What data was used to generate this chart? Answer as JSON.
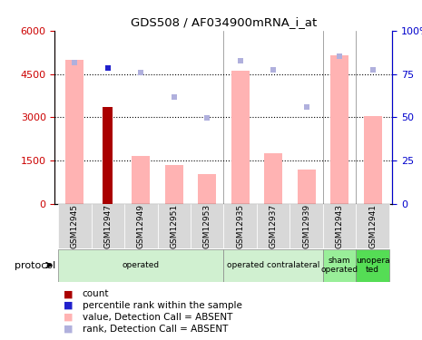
{
  "title": "GDS508 / AF034900mRNA_i_at",
  "samples": [
    "GSM12945",
    "GSM12947",
    "GSM12949",
    "GSM12951",
    "GSM12953",
    "GSM12935",
    "GSM12937",
    "GSM12939",
    "GSM12943",
    "GSM12941"
  ],
  "count_values": [
    null,
    3350,
    null,
    null,
    null,
    null,
    null,
    null,
    null,
    null
  ],
  "percentile_values": [
    null,
    4700,
    null,
    null,
    null,
    null,
    null,
    null,
    null,
    null
  ],
  "bar_values": [
    5000,
    null,
    1650,
    1350,
    1050,
    4600,
    1750,
    1200,
    5150,
    3050
  ],
  "rank_values": [
    4900,
    null,
    4550,
    3700,
    2980,
    4950,
    4650,
    3350,
    5100,
    4650
  ],
  "ylim_left": [
    0,
    6000
  ],
  "ylim_right": [
    0,
    100
  ],
  "yticks_left": [
    0,
    1500,
    3000,
    4500,
    6000
  ],
  "ytick_labels_left": [
    "0",
    "1500",
    "3000",
    "4500",
    "6000"
  ],
  "yticks_right": [
    0,
    25,
    50,
    75,
    100
  ],
  "ytick_labels_right": [
    "0",
    "25",
    "50",
    "75",
    "100%"
  ],
  "protocol_groups": [
    {
      "label": "operated",
      "start": 0,
      "end": 5,
      "color": "#d0f0d0"
    },
    {
      "label": "operated contralateral",
      "start": 5,
      "end": 8,
      "color": "#d0f0d0"
    },
    {
      "label": "sham\noperated",
      "start": 8,
      "end": 9,
      "color": "#99ee99"
    },
    {
      "label": "unopera\nted",
      "start": 9,
      "end": 10,
      "color": "#55dd55"
    }
  ],
  "bar_color_pink": "#ffb3b3",
  "rank_color": "#b0b0dd",
  "percentile_color": "#2020cc",
  "count_color": "#aa0000",
  "left_axis_color": "#cc0000",
  "right_axis_color": "#0000cc",
  "vline_positions": [
    4.5,
    7.5,
    8.5
  ]
}
